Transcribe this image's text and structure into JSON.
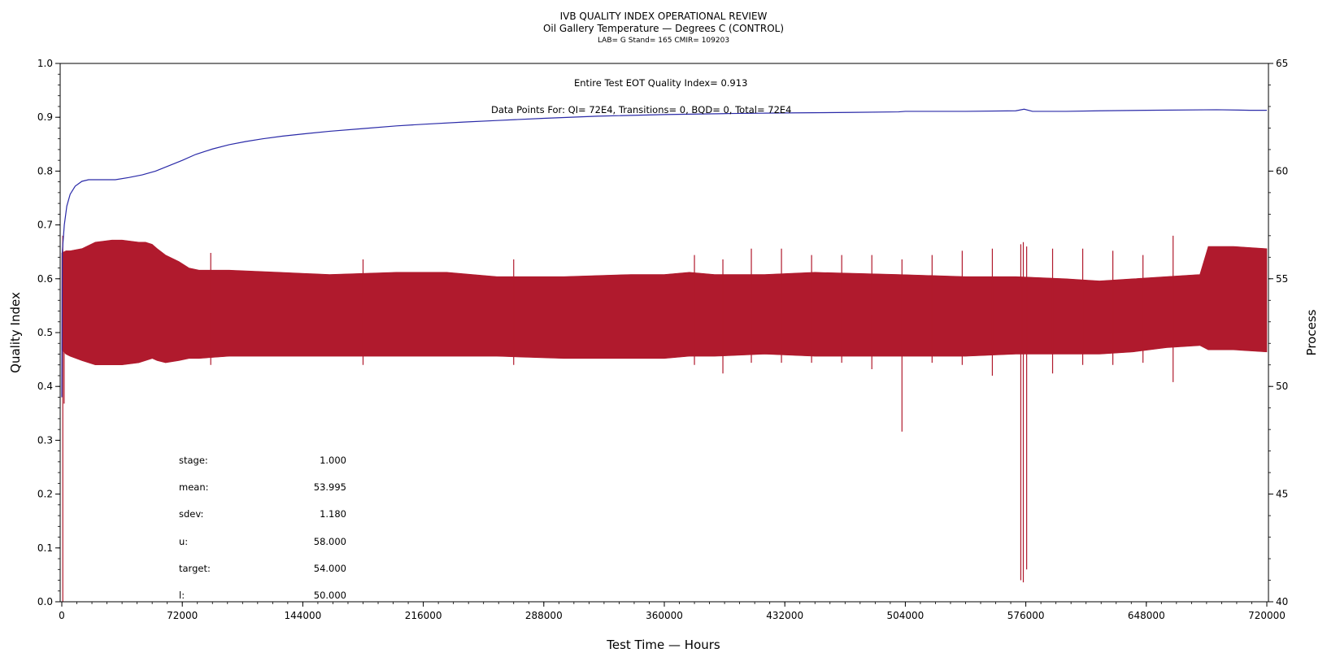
{
  "chart_data": {
    "type": "line",
    "title": "IVB QUALITY INDEX OPERATIONAL REVIEW",
    "subtitle": "Oil Gallery Temperature — Degrees C (CONTROL)",
    "subtitle2": "LAB= G Stand= 165 CMIR= 109203",
    "xlabel": "Test Time — Hours",
    "ylabel": "Quality Index",
    "y2label": "Process",
    "xlim": [
      0,
      720000
    ],
    "ylim": [
      0.0,
      1.0
    ],
    "y2lim": [
      40,
      65
    ],
    "x_ticks": [
      0,
      72000,
      144000,
      216000,
      288000,
      360000,
      432000,
      504000,
      576000,
      648000,
      720000
    ],
    "x_tick_labels": [
      "0",
      "72000",
      "144000",
      "216000",
      "288000",
      "360000",
      "432000",
      "504000",
      "576000",
      "648000",
      "720000"
    ],
    "y_ticks": [
      0.0,
      0.1,
      0.2,
      0.3,
      0.4,
      0.5,
      0.6,
      0.7,
      0.8,
      0.9,
      1.0
    ],
    "y_tick_labels": [
      "0.0",
      "0.1",
      "0.2",
      "0.3",
      "0.4",
      "0.5",
      "0.6",
      "0.7",
      "0.8",
      "0.9",
      "1.0"
    ],
    "y2_ticks": [
      40,
      45,
      50,
      55,
      60,
      65
    ],
    "y2_tick_labels": [
      "40",
      "45",
      "50",
      "55",
      "60",
      "65"
    ],
    "annotations": {
      "quality_index": "Entire Test EOT Quality Index=   0.913",
      "data_points": "Data Points For: QI=  72E4, Transitions=      0, BQD=      0, Total=  72E4"
    },
    "stats": [
      {
        "label": "stage:",
        "value": "1.000"
      },
      {
        "label": "mean:",
        "value": "53.995"
      },
      {
        "label": "sdev:",
        "value": "1.180"
      },
      {
        "label": "u:",
        "value": "58.000"
      },
      {
        "label": "target:",
        "value": "54.000"
      },
      {
        "label": "l:",
        "value": "50.000"
      }
    ],
    "series": [
      {
        "axis": "left",
        "color": "#2a2aa8",
        "x": [
          0,
          300,
          1500,
          3000,
          5000,
          8000,
          12000,
          16000,
          20000,
          26000,
          32000,
          40000,
          48000,
          56000,
          64000,
          72000,
          80000,
          90000,
          100000,
          110000,
          120000,
          132000,
          144000,
          160000,
          180000,
          200000,
          216000,
          240000,
          260000,
          288000,
          320000,
          360000,
          400000,
          432000,
          470000,
          500000,
          504000,
          540000,
          570000,
          575000,
          580000,
          600000,
          620000,
          648000,
          690000,
          710000,
          720000
        ],
        "y": [
          0.38,
          0.65,
          0.7,
          0.735,
          0.757,
          0.772,
          0.781,
          0.784,
          0.784,
          0.784,
          0.784,
          0.788,
          0.793,
          0.8,
          0.81,
          0.82,
          0.831,
          0.841,
          0.849,
          0.855,
          0.86,
          0.865,
          0.869,
          0.874,
          0.879,
          0.884,
          0.887,
          0.891,
          0.894,
          0.898,
          0.902,
          0.905,
          0.907,
          0.908,
          0.909,
          0.91,
          0.911,
          0.911,
          0.912,
          0.915,
          0.911,
          0.911,
          0.912,
          0.913,
          0.914,
          0.913,
          0.913
        ]
      },
      {
        "axis": "right",
        "color": "#b01a2d",
        "band": {
          "x": [
            0,
            2500,
            5000,
            12000,
            20000,
            30000,
            36000,
            46000,
            50000,
            54000,
            57000,
            62000,
            70000,
            76000,
            82000,
            100000,
            130000,
            160000,
            200000,
            230000,
            260000,
            300000,
            340000,
            360000,
            375000,
            390000,
            420000,
            450000,
            500000,
            540000,
            570000,
            600000,
            620000,
            640000,
            660000,
            680000,
            685000,
            700000,
            720000
          ],
          "upper": [
            56.2,
            56.3,
            56.3,
            56.4,
            56.7,
            56.8,
            56.8,
            56.7,
            56.7,
            56.6,
            56.4,
            56.1,
            55.8,
            55.5,
            55.4,
            55.4,
            55.3,
            55.2,
            55.3,
            55.3,
            55.1,
            55.1,
            55.2,
            55.2,
            55.3,
            55.2,
            55.2,
            55.3,
            55.2,
            55.1,
            55.1,
            55.0,
            54.9,
            55.0,
            55.1,
            55.2,
            56.5,
            56.5,
            56.4
          ],
          "lower": [
            51.7,
            51.5,
            51.4,
            51.2,
            51.0,
            51.0,
            51.0,
            51.1,
            51.2,
            51.3,
            51.2,
            51.1,
            51.2,
            51.3,
            51.3,
            51.4,
            51.4,
            51.4,
            51.4,
            51.4,
            51.4,
            51.3,
            51.3,
            51.3,
            51.4,
            51.4,
            51.5,
            51.4,
            51.4,
            51.4,
            51.5,
            51.5,
            51.5,
            51.6,
            51.8,
            51.9,
            51.7,
            51.7,
            51.6
          ]
        },
        "spikes": [
          {
            "x": 600,
            "low": 40.0,
            "high": 57.0
          },
          {
            "x": 1400,
            "low": 49.2,
            "high": 56.0
          },
          {
            "x": 89000,
            "low": 51.0,
            "high": 56.2
          },
          {
            "x": 180000,
            "low": 51.0,
            "high": 55.9
          },
          {
            "x": 270000,
            "low": 51.0,
            "high": 55.9
          },
          {
            "x": 378000,
            "low": 51.0,
            "high": 56.1
          },
          {
            "x": 395000,
            "low": 50.6,
            "high": 55.9
          },
          {
            "x": 412000,
            "low": 51.1,
            "high": 56.4
          },
          {
            "x": 430000,
            "low": 51.1,
            "high": 56.4
          },
          {
            "x": 448000,
            "low": 51.1,
            "high": 56.1
          },
          {
            "x": 466000,
            "low": 51.1,
            "high": 56.1
          },
          {
            "x": 484000,
            "low": 50.8,
            "high": 56.1
          },
          {
            "x": 502000,
            "low": 47.9,
            "high": 55.9
          },
          {
            "x": 520000,
            "low": 51.1,
            "high": 56.1
          },
          {
            "x": 538000,
            "low": 51.0,
            "high": 56.3
          },
          {
            "x": 556000,
            "low": 50.5,
            "high": 56.4
          },
          {
            "x": 573000,
            "low": 41.0,
            "high": 56.6
          },
          {
            "x": 574500,
            "low": 40.9,
            "high": 56.7
          },
          {
            "x": 576500,
            "low": 41.5,
            "high": 56.5
          },
          {
            "x": 592000,
            "low": 50.6,
            "high": 56.4
          },
          {
            "x": 610000,
            "low": 51.0,
            "high": 56.4
          },
          {
            "x": 628000,
            "low": 51.0,
            "high": 56.3
          },
          {
            "x": 646000,
            "low": 51.1,
            "high": 56.1
          },
          {
            "x": 664000,
            "low": 50.2,
            "high": 57.0
          }
        ]
      }
    ]
  }
}
